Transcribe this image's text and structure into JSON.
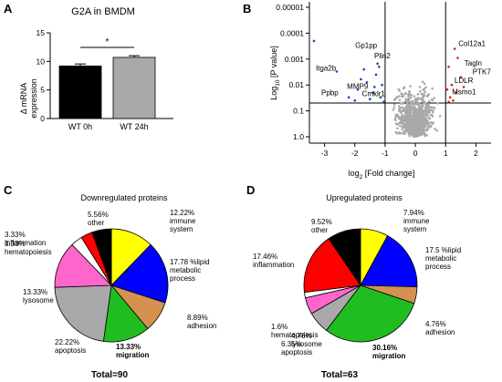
{
  "panels": {
    "a": "A",
    "b": "B",
    "c": "C",
    "d": "D"
  },
  "chart_data": [
    {
      "type": "bar",
      "title": "G2A in  BMDM",
      "ylabel": "Δ mRNA expression",
      "ylabel_lines": [
        "Δ mRNA",
        "expression"
      ],
      "categories": [
        "WT 0h",
        "WT 24h"
      ],
      "values": [
        9.2,
        10.7
      ],
      "errors": [
        0.35,
        0.3
      ],
      "colors": [
        "#000000",
        "#a9a9a9"
      ],
      "ylim": [
        0,
        15
      ],
      "yticks": [
        "0",
        "5",
        "10",
        "15"
      ],
      "significance": "*"
    },
    {
      "type": "scatter",
      "xlabel": "log2 [Fold change]",
      "xlabel_main": "log",
      "xlabel_sub": "2",
      "xlabel_rest": " [Fold change]",
      "ylabel": "Log10 [P value]",
      "ylabel_main": "Log",
      "ylabel_sub": "10",
      "ylabel_rest": " [P value]",
      "xlim": [
        -3.5,
        2.5
      ],
      "xticks": [
        "-3",
        "-2",
        "-1",
        "0",
        "1",
        "2"
      ],
      "ylim_log": [
        1e-05,
        1
      ],
      "yticks": [
        "0.00001",
        "0.0001",
        "0.001",
        "0.01",
        "0.1",
        "1.0"
      ],
      "fc_thresholds": [
        -1,
        1
      ],
      "p_threshold": 0.05,
      "colors": {
        "nonsig": "#a9a9a9",
        "down": "#1f3fbf",
        "up": "#e01a1a"
      },
      "labels": [
        {
          "text": "Col12a1",
          "x": 1.3,
          "y": 0.00025
        },
        {
          "text": "Tagln",
          "x": 1.5,
          "y": 0.0014
        },
        {
          "text": "PTK7",
          "x": 1.8,
          "y": 0.003
        },
        {
          "text": "LDLR",
          "x": 1.2,
          "y": 0.0065
        },
        {
          "text": "Msmo1",
          "x": 1.15,
          "y": 0.018
        },
        {
          "text": "Gp1pp",
          "x": -1.9,
          "y": 0.0005
        },
        {
          "text": "Plin2",
          "x": -1.3,
          "y": 0.0012
        },
        {
          "text": "Itga2b",
          "x": -2.5,
          "y": 0.0022
        },
        {
          "text": "MMP9",
          "x": -1.5,
          "y": 0.011
        },
        {
          "text": "Cmklr1",
          "x": -1.0,
          "y": 0.02
        },
        {
          "text": "Ppbp",
          "x": -3.35,
          "y": 0.02
        }
      ]
    },
    {
      "type": "pie",
      "title": "Downregulated proteins",
      "total": "Total=90",
      "slices": [
        {
          "name": "immune system",
          "percent": 12.22,
          "label": "12.22%",
          "label2": [
            "immune",
            "system"
          ],
          "color": "#ffff00"
        },
        {
          "name": "lipid metabolic process",
          "percent": 17.78,
          "label": "17.78 %lipid",
          "label2": [
            "metabolic",
            "process"
          ],
          "color": "#0000ff"
        },
        {
          "name": "adhesion",
          "percent": 8.89,
          "label": "8.89%",
          "label2": [
            "adhesion"
          ],
          "color": "#d4914f"
        },
        {
          "name": "migration",
          "percent": 13.33,
          "label": "13.33%",
          "label2": [
            "migration"
          ],
          "color": "#1fbd1f",
          "bold": true
        },
        {
          "name": "apoptosis",
          "percent": 22.22,
          "label": "22.22%",
          "label2": [
            "apoptosis"
          ],
          "color": "#a9a9a9"
        },
        {
          "name": "lysosome",
          "percent": 13.33,
          "label": "13.33%",
          "label2": [
            "lysosome"
          ],
          "color": "#ff66cc"
        },
        {
          "name": "hematopoiesis",
          "percent": 3.33,
          "label": "3.33%",
          "label2": [
            "hematopoiesis"
          ],
          "color": "#ffffff"
        },
        {
          "name": "inflammation",
          "percent": 3.33,
          "label": "3.33%",
          "label2": [
            "inflammation"
          ],
          "color": "#ff0000"
        },
        {
          "name": "other",
          "percent": 5.56,
          "label": "5.56%",
          "label2": [
            "other"
          ],
          "color": "#000000"
        }
      ]
    },
    {
      "type": "pie",
      "title": "Upregulated proteins",
      "total": "Total=63",
      "slices": [
        {
          "name": "immune system",
          "percent": 7.94,
          "label": "7.94%",
          "label2": [
            "immune",
            "system"
          ],
          "color": "#ffff00"
        },
        {
          "name": "lipid metabolic process",
          "percent": 17.5,
          "label": "17.5 %lipid",
          "label2": [
            "metabolic",
            "process"
          ],
          "color": "#0000ff"
        },
        {
          "name": "adhesion",
          "percent": 4.76,
          "label": "4.76%",
          "label2": [
            "adhesion"
          ],
          "color": "#d4914f"
        },
        {
          "name": "migration",
          "percent": 30.16,
          "label": "30.16%",
          "label2": [
            "migration"
          ],
          "color": "#1fbd1f",
          "bold": true
        },
        {
          "name": "apoptosis",
          "percent": 6.35,
          "label": "6.35%",
          "label2": [
            "apoptosis"
          ],
          "color": "#a9a9a9"
        },
        {
          "name": "lysosome",
          "percent": 4.76,
          "label": "4.76%",
          "label2": [
            "lysosome"
          ],
          "color": "#ff66cc"
        },
        {
          "name": "hematopoiesis",
          "percent": 1.6,
          "label": "1.6%",
          "label2": [
            "hematopoiesis"
          ],
          "color": "#ffffff"
        },
        {
          "name": "inflammation",
          "percent": 17.46,
          "label": "17.46%",
          "label2": [
            "inflammation"
          ],
          "color": "#ff0000"
        },
        {
          "name": "other",
          "percent": 9.52,
          "label": "9.52%",
          "label2": [
            "other"
          ],
          "color": "#000000"
        }
      ]
    }
  ]
}
